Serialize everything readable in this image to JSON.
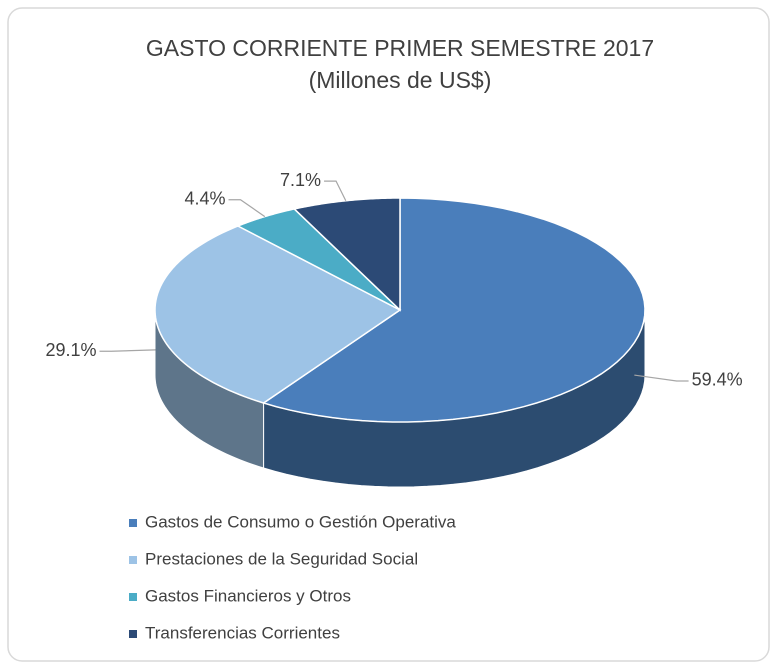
{
  "chart_data": {
    "type": "pie3d",
    "title": "GASTO CORRIENTE PRIMER SEMESTRE 2017",
    "subtitle": "(Millones de US$)",
    "categories": [
      "Gastos de Consumo o Gestión Operativa",
      "Prestaciones de la Seguridad Social",
      "Gastos Financieros y Otros",
      "Transferencias Corrientes"
    ],
    "values": [
      59.4,
      29.1,
      4.4,
      7.1
    ],
    "value_labels": [
      "59.4%",
      "29.1%",
      "4.4%",
      "7.1%"
    ],
    "colors": [
      "#4a7ebb",
      "#9dc3e6",
      "#4bacc6",
      "#2c4a76"
    ],
    "legend": "bottom"
  }
}
